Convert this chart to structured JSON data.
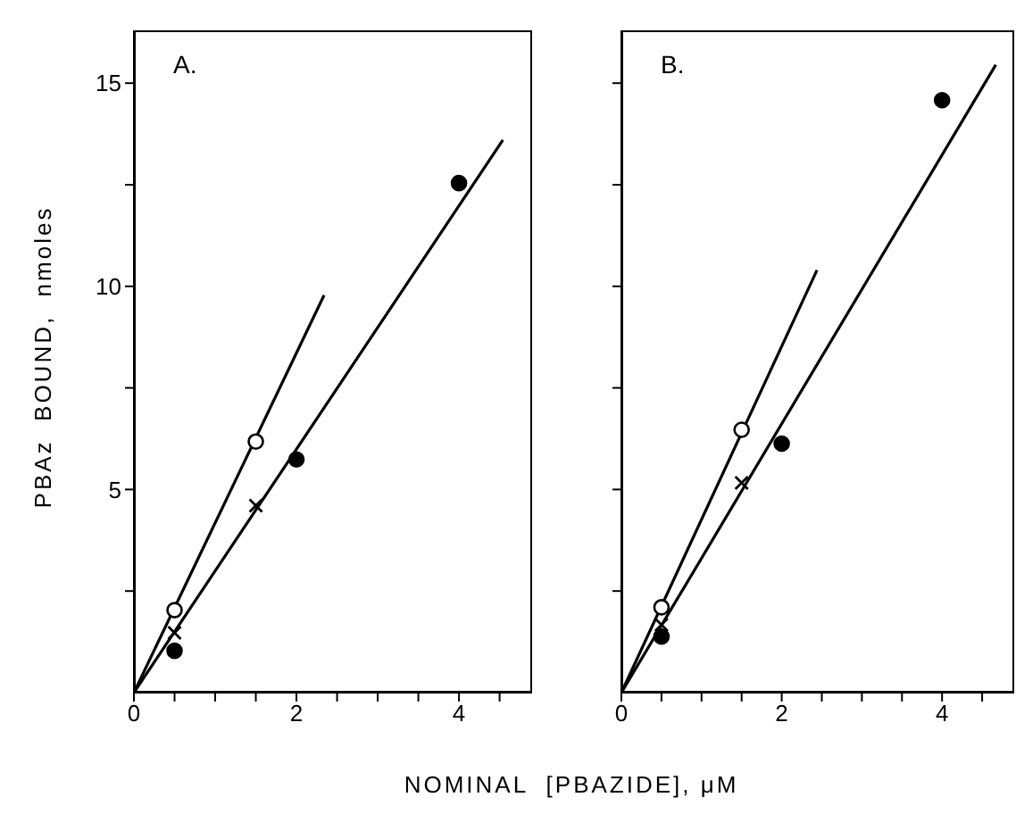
{
  "chart_data": [
    {
      "type": "scatter",
      "title": "A.",
      "xlabel": "NOMINAL  [PBAZIDE], μM",
      "ylabel": "PBAz  BOUND,  nmoles",
      "xlim": [
        0,
        4.9
      ],
      "ylim": [
        0,
        16.3
      ],
      "xticks": [
        0,
        {
          "value": 0.5,
          "label": null
        },
        {
          "value": 1,
          "label": null
        },
        {
          "value": 1.5,
          "label": null
        },
        2,
        {
          "value": 2.5,
          "label": null
        },
        {
          "value": 3,
          "label": null
        },
        {
          "value": 3.5,
          "label": null
        },
        4,
        {
          "value": 4.5,
          "label": null
        }
      ],
      "yticks": [
        {
          "value": 2.5,
          "label": null
        },
        5,
        {
          "value": 7.5,
          "label": null
        },
        10,
        {
          "value": 12.5,
          "label": null
        },
        15
      ],
      "grid": false,
      "legend": false,
      "series": [
        {
          "marker": "circle",
          "color": "#ffffff",
          "x": [
            0.5,
            1.5
          ],
          "values": [
            2.03,
            6.18
          ]
        },
        {
          "marker": "cross",
          "color": "#000000",
          "x": [
            0.5,
            1.5
          ],
          "values": [
            1.47,
            4.6
          ]
        },
        {
          "marker": "circle",
          "color": "#000000",
          "x": [
            0.5,
            2,
            4
          ],
          "values": [
            1.03,
            5.74,
            12.54
          ]
        },
        {
          "type": "line",
          "color": "#000000",
          "x": [
            0,
            2.34
          ],
          "values": [
            0,
            9.78
          ]
        },
        {
          "type": "line",
          "color": "#000000",
          "x": [
            0,
            4.54
          ],
          "values": [
            0,
            13.6
          ]
        }
      ]
    },
    {
      "type": "scatter",
      "title": "B.",
      "xlim": [
        0,
        4.9
      ],
      "ylim": [
        0,
        16.3
      ],
      "tick_labels": "x",
      "xticks": [
        0,
        {
          "value": 0.5,
          "label": null
        },
        {
          "value": 1,
          "label": null
        },
        {
          "value": 1.5,
          "label": null
        },
        2,
        {
          "value": 2.5,
          "label": null
        },
        {
          "value": 3,
          "label": null
        },
        {
          "value": 3.5,
          "label": null
        },
        4,
        {
          "value": 4.5,
          "label": null
        }
      ],
      "yticks": [
        {
          "value": 2.5,
          "label": null
        },
        {
          "value": 5,
          "label": null
        },
        {
          "value": 7.5,
          "label": null
        },
        {
          "value": 10,
          "label": null
        },
        {
          "value": 12.5,
          "label": null
        },
        {
          "value": 15,
          "label": null
        }
      ],
      "grid": false,
      "legend": false,
      "series": [
        {
          "marker": "circle",
          "color": "#ffffff",
          "x": [
            0.5,
            1.5
          ],
          "values": [
            2.1,
            6.47
          ]
        },
        {
          "marker": "cross",
          "color": "#000000",
          "x": [
            0.5,
            1.5
          ],
          "values": [
            1.67,
            5.16
          ]
        },
        {
          "marker": "circle",
          "color": "#000000",
          "x": [
            0.5,
            2,
            4
          ],
          "values": [
            1.38,
            6.13,
            14.58
          ]
        },
        {
          "type": "line",
          "color": "#000000",
          "x": [
            0,
            2.44
          ],
          "values": [
            0,
            10.4
          ]
        },
        {
          "type": "line",
          "color": "#000000",
          "x": [
            0,
            4.67
          ],
          "values": [
            0,
            15.45
          ]
        }
      ]
    }
  ]
}
